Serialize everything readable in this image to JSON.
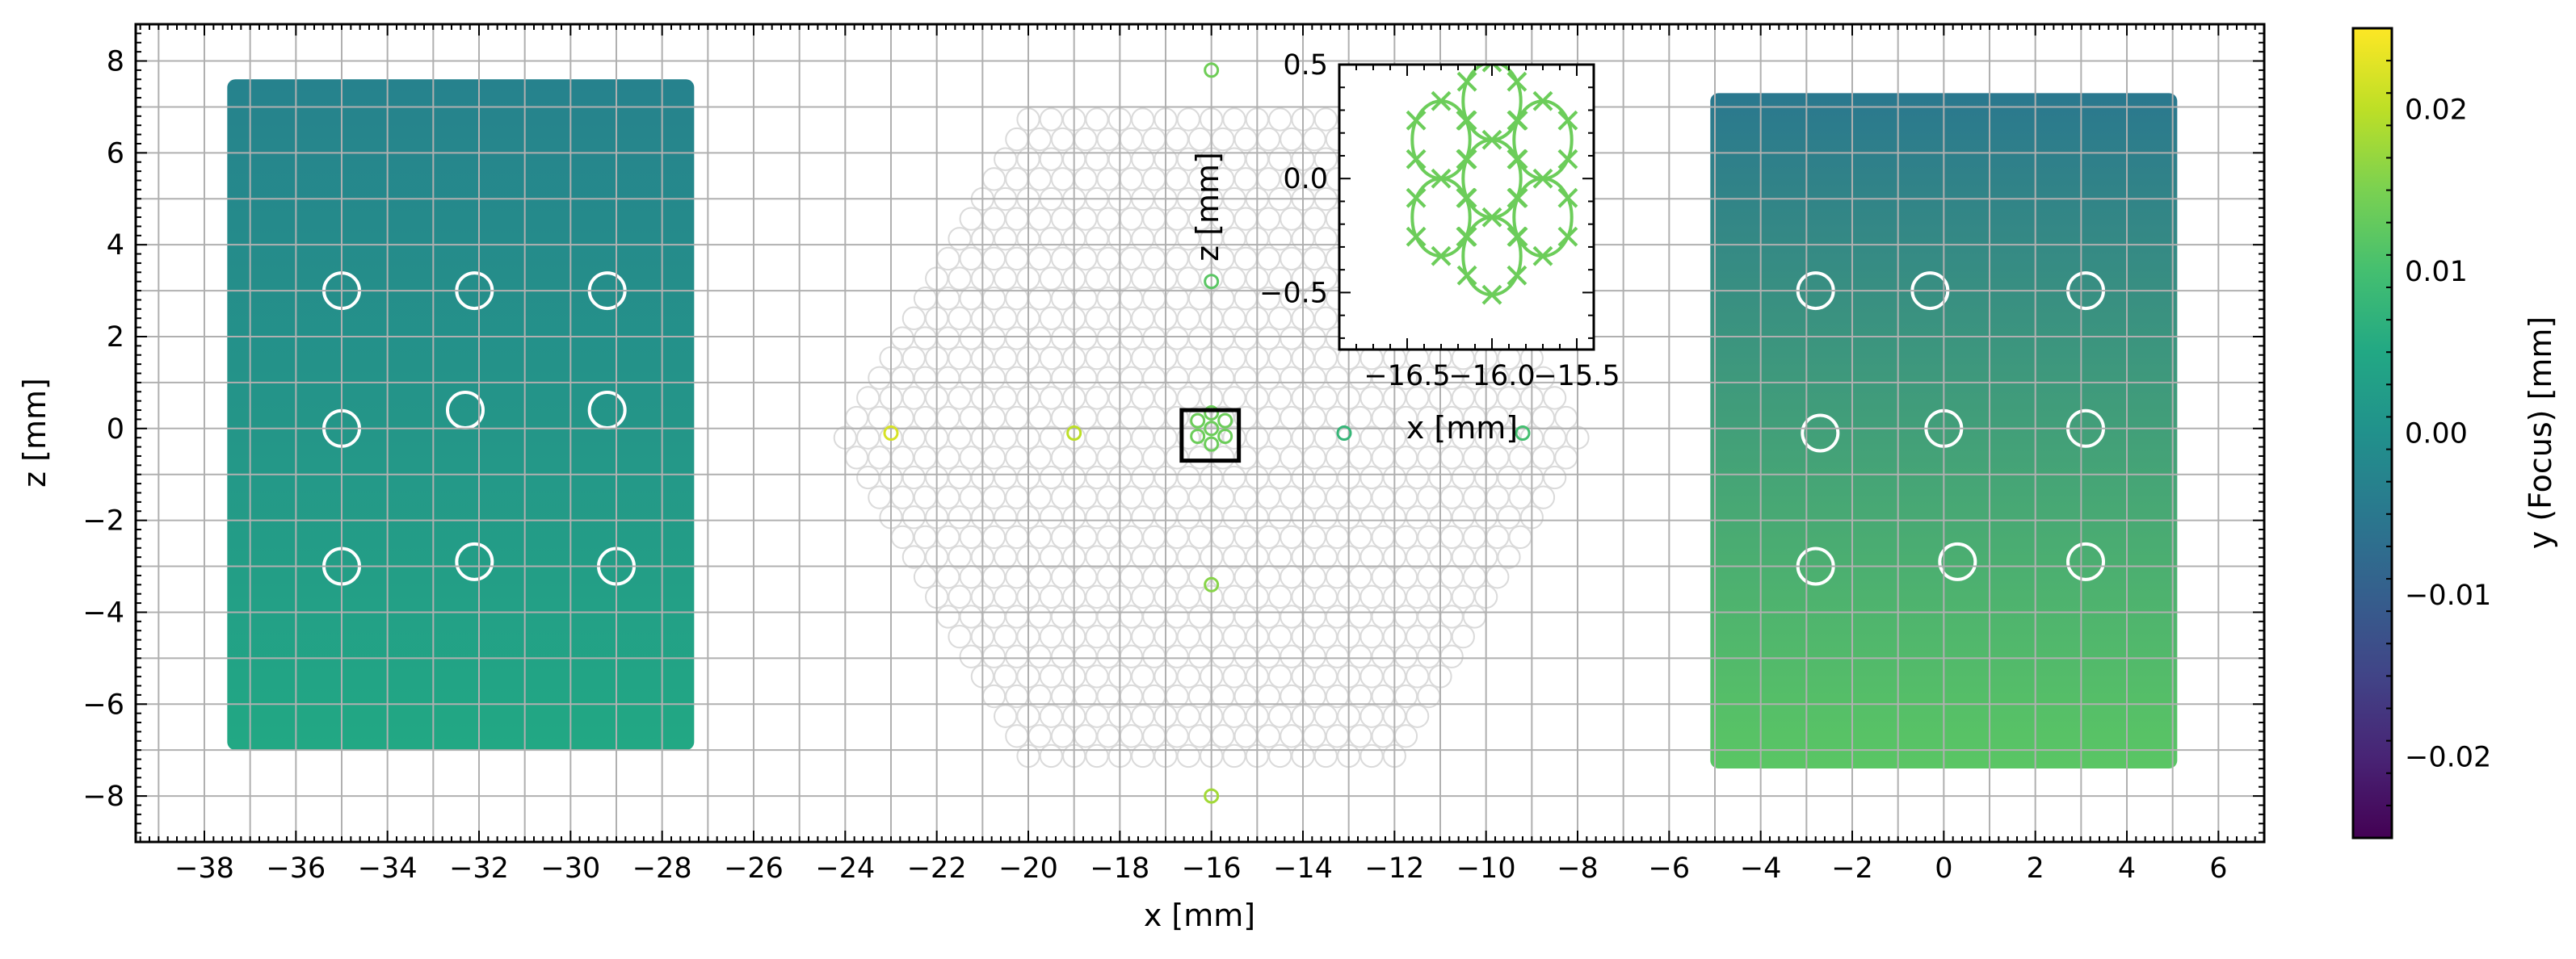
{
  "chart_data": {
    "type": "scatter",
    "main": {
      "xlabel": "x [mm]",
      "ylabel": "z [mm]",
      "xlim": [
        -39.5,
        7.0
      ],
      "ylim": [
        -9.0,
        8.8
      ],
      "x_ticks": [
        -38,
        -36,
        -34,
        -32,
        -30,
        -28,
        -26,
        -24,
        -22,
        -20,
        -18,
        -16,
        -14,
        -12,
        -10,
        -8,
        -6,
        -4,
        -2,
        0,
        2,
        4,
        6
      ],
      "y_ticks": [
        -8,
        -6,
        -4,
        -2,
        0,
        2,
        4,
        6,
        8
      ],
      "x_tick_labels": [
        "−38",
        "−36",
        "−34",
        "−32",
        "−30",
        "−28",
        "−26",
        "−24",
        "−22",
        "−20",
        "−18",
        "−16",
        "−14",
        "−12",
        "−10",
        "−8",
        "−6",
        "−4",
        "−2",
        "0",
        "2",
        "4",
        "6"
      ],
      "y_tick_labels": [
        "−8",
        "−6",
        "−4",
        "−2",
        "0",
        "2",
        "4",
        "6",
        "8"
      ],
      "grid": true,
      "grid_step": 1,
      "sensors": [
        {
          "name": "left",
          "x_range": [
            -37.5,
            -27.3
          ],
          "z_range": [
            -7.0,
            7.6
          ],
          "focus_top": -0.003,
          "focus_bottom": 0.005,
          "spots": [
            [
              -35.0,
              3.0
            ],
            [
              -32.1,
              3.0
            ],
            [
              -29.2,
              3.0
            ],
            [
              -35.0,
              0.0
            ],
            [
              -32.3,
              0.4
            ],
            [
              -29.2,
              0.4
            ],
            [
              -35.0,
              -3.0
            ],
            [
              -32.1,
              -2.9
            ],
            [
              -29.0,
              -3.0
            ]
          ]
        },
        {
          "name": "right",
          "x_range": [
            -5.1,
            5.1
          ],
          "z_range": [
            -7.4,
            7.3
          ],
          "focus_top": -0.005,
          "focus_bottom": 0.012,
          "spots": [
            [
              -2.8,
              3.0
            ],
            [
              -0.3,
              3.0
            ],
            [
              3.1,
              3.0
            ],
            [
              -2.7,
              -0.1
            ],
            [
              0.0,
              0.0
            ],
            [
              3.1,
              0.0
            ],
            [
              -2.8,
              -3.0
            ],
            [
              0.3,
              -2.9
            ],
            [
              3.1,
              -2.9
            ]
          ]
        }
      ],
      "hexagon": {
        "center": [
          -16.0,
          -0.2
        ],
        "circumradius": 8.0,
        "pitch": 0.5
      },
      "field_points": [
        {
          "x": -16.0,
          "z": 7.8,
          "focus": 0.014
        },
        {
          "x": -16.0,
          "z": 3.2,
          "focus": 0.012
        },
        {
          "x": -23.0,
          "z": -0.1,
          "focus": 0.022
        },
        {
          "x": -19.0,
          "z": -0.1,
          "focus": 0.02
        },
        {
          "x": -13.1,
          "z": -0.1,
          "focus": 0.008
        },
        {
          "x": -9.2,
          "z": -0.1,
          "focus": 0.01
        },
        {
          "x": -16.0,
          "z": -3.4,
          "focus": 0.016
        },
        {
          "x": -16.0,
          "z": -8.0,
          "focus": 0.018
        }
      ],
      "inset_box": {
        "x": [
          -16.65,
          -15.4
        ],
        "z": [
          -0.7,
          0.4
        ]
      }
    },
    "inset": {
      "xlabel": "x [mm]",
      "ylabel": "z [mm]",
      "xlim": [
        -16.9,
        -15.4
      ],
      "ylim": [
        -0.75,
        0.5
      ],
      "x_ticks": [
        -16.5,
        -16.0,
        -15.5
      ],
      "x_tick_labels": [
        "−16.5",
        "−16.0",
        "−15.5"
      ],
      "y_ticks": [
        -0.5,
        0.0,
        0.5
      ],
      "y_tick_labels": [
        "−0.5",
        "0.0",
        "0.5"
      ],
      "color": "#6ccd5a",
      "circle_radius": 0.17,
      "centers": [
        [
          -16.0,
          0.0
        ],
        [
          -15.7,
          0.17
        ],
        [
          -15.7,
          -0.17
        ],
        [
          -16.0,
          -0.34
        ],
        [
          -16.3,
          -0.17
        ],
        [
          -16.3,
          0.17
        ],
        [
          -16.0,
          0.34
        ]
      ]
    },
    "colorbar": {
      "label": "y (Focus) [mm]",
      "colormap": "viridis",
      "range": [
        -0.025,
        0.025
      ],
      "ticks": [
        -0.02,
        -0.01,
        0.0,
        0.01,
        0.02
      ],
      "tick_labels": [
        "−0.02",
        "−0.01",
        "0.00",
        "0.01",
        "0.02"
      ]
    }
  }
}
